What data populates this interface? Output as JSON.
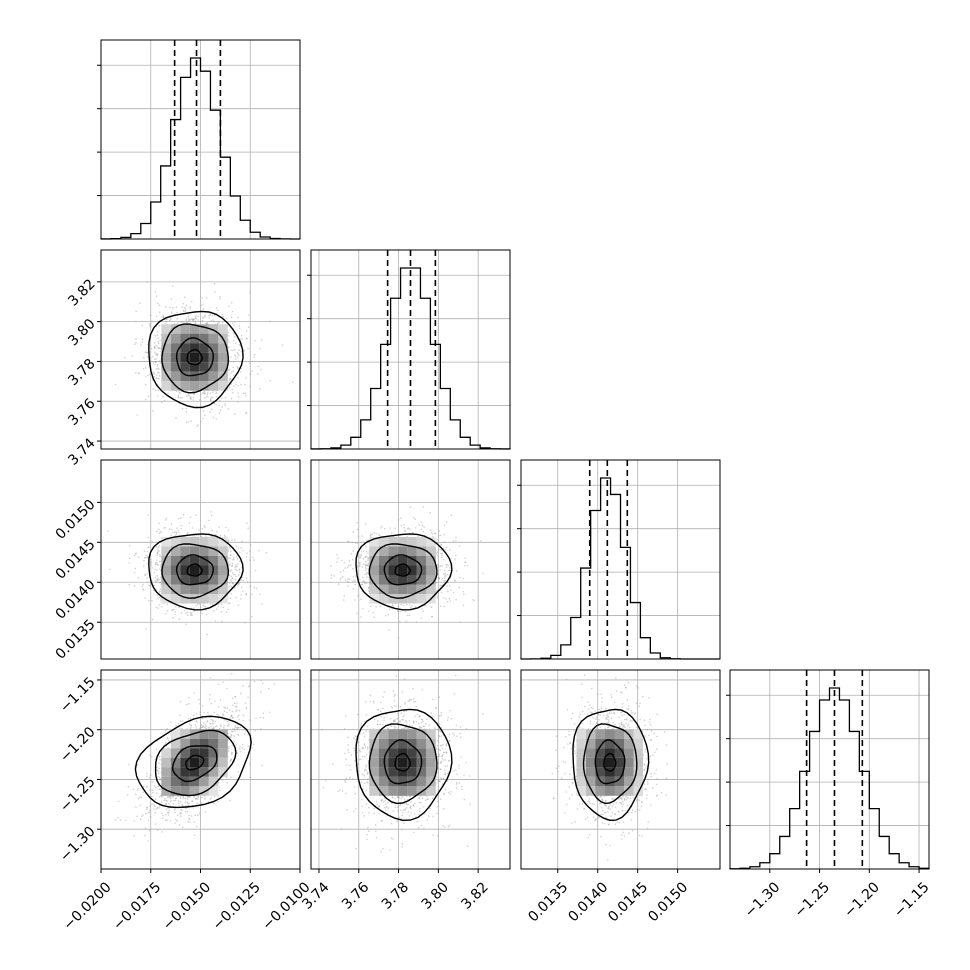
{
  "chart_data": {
    "type": "corner",
    "parameters": [
      {
        "ticks": [
          -0.02,
          -0.0175,
          -0.015,
          -0.0125,
          -0.01
        ],
        "tick_labels": [
          "−0.0200",
          "−0.0175",
          "−0.0150",
          "−0.0125",
          "−0.0100"
        ],
        "range": [
          -0.02,
          -0.01
        ],
        "quantiles": [
          -0.0163,
          -0.0152,
          -0.014
        ],
        "mean": -0.0152,
        "sd": 0.00115,
        "kde_mean": -0.0153
      },
      {
        "ticks": [
          3.74,
          3.76,
          3.78,
          3.8,
          3.82
        ],
        "tick_labels": [
          "3.74",
          "3.76",
          "3.78",
          "3.80",
          "3.82"
        ],
        "range": [
          3.736,
          3.836
        ],
        "quantiles": [
          3.7745,
          3.786,
          3.7985
        ],
        "mean": 3.786,
        "sd": 0.0117,
        "kde_mean": 3.782
      },
      {
        "ticks": [
          0.0135,
          0.014,
          0.0145,
          0.015
        ],
        "tick_labels": [
          "0.0135",
          "0.0140",
          "0.0145",
          "0.0150"
        ],
        "range": [
          0.01304,
          0.01553
        ],
        "quantiles": [
          0.0139,
          0.01412,
          0.01437
        ],
        "mean": 0.01412,
        "sd": 0.00023,
        "kde_mean": 0.01415
      },
      {
        "ticks": [
          -1.3,
          -1.25,
          -1.2,
          -1.15
        ],
        "tick_labels": [
          "−1.30",
          "−1.25",
          "−1.20",
          "−1.15"
        ],
        "range": [
          -1.34,
          -1.14
        ],
        "quantiles": [
          -1.263,
          -1.235,
          -1.207
        ],
        "mean": -1.235,
        "sd": 0.027,
        "kde_mean": -1.233
      }
    ],
    "correlations": [
      [
        1,
        0,
        0,
        0.55
      ],
      [
        0,
        1,
        0,
        0
      ],
      [
        0,
        0,
        1,
        0
      ],
      [
        0.55,
        0,
        0,
        1
      ]
    ],
    "histogram_bins": 20,
    "contour_levels": 4,
    "grid": true,
    "quantile_line_style": "dashed",
    "colors": {
      "line": "#000000",
      "grid": "#b0b0b0",
      "point": "#9a9a9a",
      "density_max": "#1a1a1a",
      "background": "#ffffff"
    }
  }
}
